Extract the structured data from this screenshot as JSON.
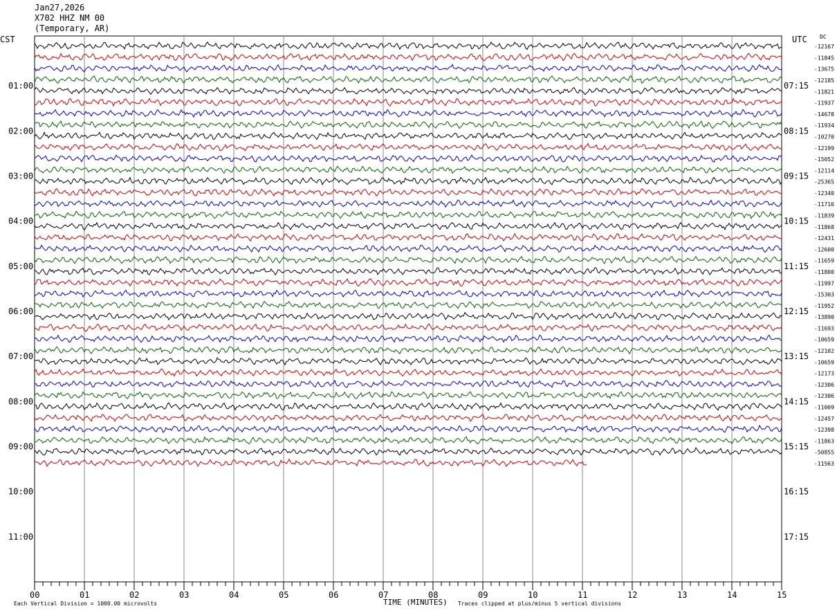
{
  "header": {
    "date": "Jan27,2026",
    "station": "X702 HHZ NM 00",
    "location": "(Temporary, AR)"
  },
  "left_timezone": "CST",
  "right_timezone": "UTC",
  "dc_label": "DC",
  "footer": {
    "scale_note": "Each Vertical Division = 1000.00 microvolts",
    "xtitle": "TIME (MINUTES)",
    "clip_note": "Traces clipped at plus/minus 5 vertical divisions"
  },
  "chart_data": {
    "type": "line",
    "title": "",
    "xlabel": "TIME (MINUTES)",
    "xlim": [
      0,
      15
    ],
    "x_ticks": [
      "00",
      "01",
      "02",
      "03",
      "04",
      "05",
      "06",
      "07",
      "08",
      "09",
      "10",
      "11",
      "12",
      "13",
      "14",
      "15"
    ],
    "left_hour_labels": [
      "01:00",
      "02:00",
      "03:00",
      "04:00",
      "05:00",
      "06:00",
      "07:00",
      "08:00",
      "09:00",
      "10:00",
      "11:00"
    ],
    "right_hour_labels": [
      "07:15",
      "08:15",
      "09:15",
      "10:15",
      "11:15",
      "12:15",
      "13:15",
      "14:15",
      "15:15",
      "16:15",
      "17:15"
    ],
    "trace_colors": [
      "#000000",
      "#cc0000",
      "#0000cc",
      "#006600"
    ],
    "total_rows": 48,
    "recorded_traces": 38,
    "last_trace_end_minute": 11.1,
    "dc_offsets": [
      "-12167",
      "-11845",
      "-13675",
      "-12185",
      "-11821",
      "-11937",
      "-14678",
      "-11934",
      "-10270",
      "-12199",
      "-15052",
      "-12114",
      "-25365",
      "-12340",
      "-11716",
      "-11839",
      "-11868",
      "-12431",
      "-12600",
      "-11659",
      "-11800",
      "-11997",
      "-15303",
      "-11952",
      "-13890",
      "-11693",
      "-10659",
      "-12102",
      "-10659",
      "-12173",
      "-12306",
      "-12306",
      "-11009",
      "-12457",
      "-12398",
      "-11863",
      "-50855",
      "-11563"
    ]
  }
}
